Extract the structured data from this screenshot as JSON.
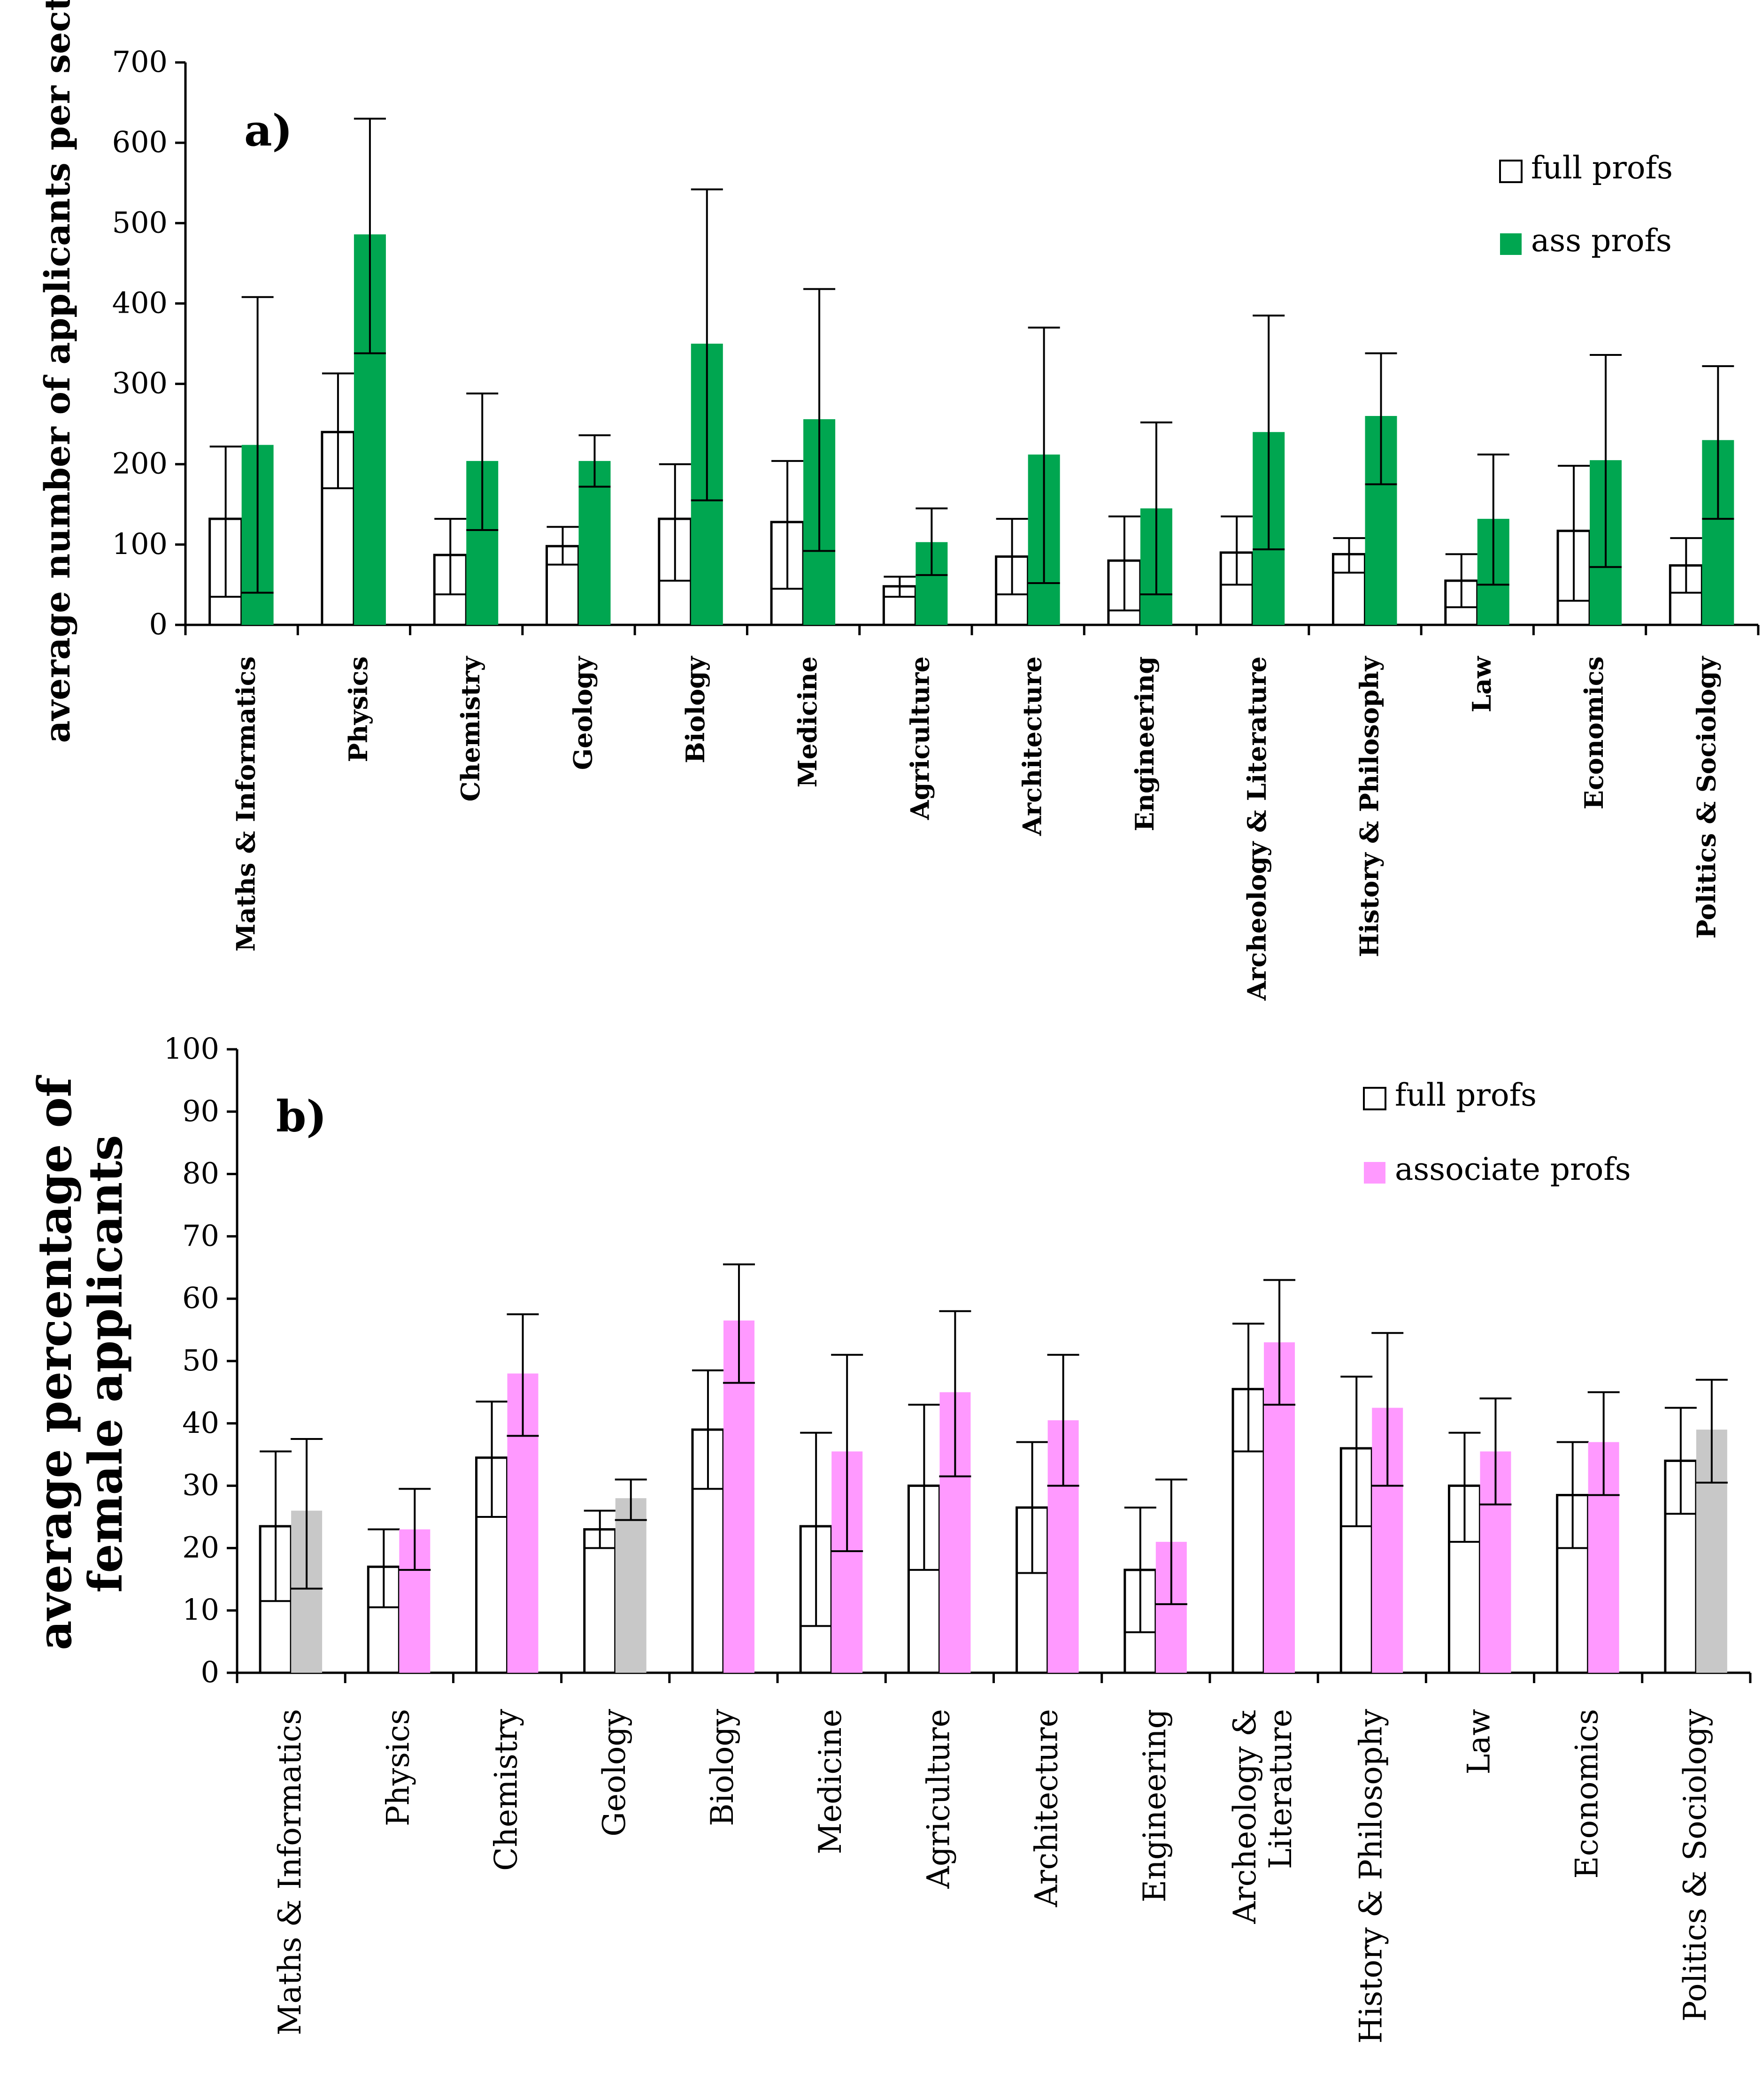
{
  "chart_data": [
    {
      "type": "bar",
      "panel_label": "a)",
      "title": "",
      "xlabel": "",
      "ylabel": "average number of applicants per section",
      "ylim": [
        0,
        700
      ],
      "yticks": [
        "0",
        "100",
        "200",
        "300",
        "400",
        "500",
        "600",
        "700"
      ],
      "legend_position": "top-right",
      "categories": [
        "Maths & Informatics",
        "Physics",
        "Chemistry",
        "Geology",
        "Biology",
        "Medicine",
        "Agriculture",
        "Architecture",
        "Engineering",
        "Archeology & Literature",
        "History & Philosophy",
        "Law",
        "Economics",
        "Politics & Sociology"
      ],
      "series": [
        {
          "name": "full profs",
          "color": "#ffffff",
          "values": [
            132,
            240,
            87,
            98,
            132,
            128,
            48,
            85,
            80,
            90,
            88,
            55,
            117,
            74
          ],
          "err_low": [
            35,
            170,
            38,
            75,
            55,
            45,
            35,
            38,
            18,
            50,
            65,
            22,
            30,
            40
          ],
          "err_high": [
            222,
            313,
            132,
            122,
            200,
            204,
            60,
            132,
            135,
            135,
            108,
            88,
            198,
            108
          ]
        },
        {
          "name": "ass profs",
          "color": "#00a650",
          "values": [
            224,
            486,
            204,
            204,
            350,
            256,
            103,
            212,
            145,
            240,
            260,
            132,
            205,
            230
          ],
          "err_low": [
            40,
            338,
            118,
            172,
            155,
            92,
            62,
            52,
            38,
            94,
            175,
            50,
            72,
            132
          ],
          "err_high": [
            408,
            630,
            288,
            236,
            542,
            418,
            145,
            370,
            252,
            385,
            338,
            212,
            336,
            322
          ]
        }
      ]
    },
    {
      "type": "bar",
      "panel_label": "b)",
      "title": "",
      "xlabel": "",
      "ylabel": [
        "average percentage of",
        "female applicants"
      ],
      "ylim": [
        0,
        100
      ],
      "yticks": [
        "0",
        "10",
        "20",
        "30",
        "40",
        "50",
        "60",
        "70",
        "80",
        "90",
        "100"
      ],
      "legend_position": "top-right",
      "categories": [
        "Maths & Informatics",
        "Physics",
        "Chemistry",
        "Geology",
        "Biology",
        "Medicine",
        "Agriculture",
        "Architecture",
        "Engineering",
        "Archeology & Literature",
        "History & Philosophy",
        "Law",
        "Economics",
        "Politics & Sociology"
      ],
      "series": [
        {
          "name": "full profs",
          "color": "#ffffff",
          "values": [
            23.5,
            17,
            34.5,
            23,
            39,
            23.5,
            30,
            26.5,
            16.5,
            45.5,
            36,
            30,
            28.5,
            34
          ],
          "err_low": [
            11.5,
            10.5,
            25,
            20,
            29.5,
            7.5,
            16.5,
            16,
            6.5,
            35.5,
            23.5,
            21,
            20,
            25.5
          ],
          "err_high": [
            35.5,
            23,
            43.5,
            26,
            48.5,
            38.5,
            43,
            37,
            26.5,
            56,
            47.5,
            38.5,
            37,
            42.5
          ]
        },
        {
          "name": "associate profs",
          "color": "#ff99ff",
          "values": [
            26,
            23,
            48,
            28,
            56.5,
            35.5,
            45,
            40.5,
            21,
            53,
            42.5,
            35.5,
            37,
            39
          ],
          "err_low": [
            13.5,
            16.5,
            38,
            24.5,
            46.5,
            19.5,
            31.5,
            30,
            11,
            43,
            30,
            27,
            28.5,
            30.5
          ],
          "err_high": [
            37.5,
            29.5,
            57.5,
            31,
            65.5,
            51,
            58,
            51,
            31,
            63,
            54.5,
            44,
            45,
            47
          ],
          "point_colors": [
            "#c8c8c8",
            "#ff99ff",
            "#ff99ff",
            "#c8c8c8",
            "#ff99ff",
            "#ff99ff",
            "#ff99ff",
            "#ff99ff",
            "#ff99ff",
            "#ff99ff",
            "#ff99ff",
            "#ff99ff",
            "#ff99ff",
            "#c8c8c8"
          ]
        }
      ]
    }
  ]
}
